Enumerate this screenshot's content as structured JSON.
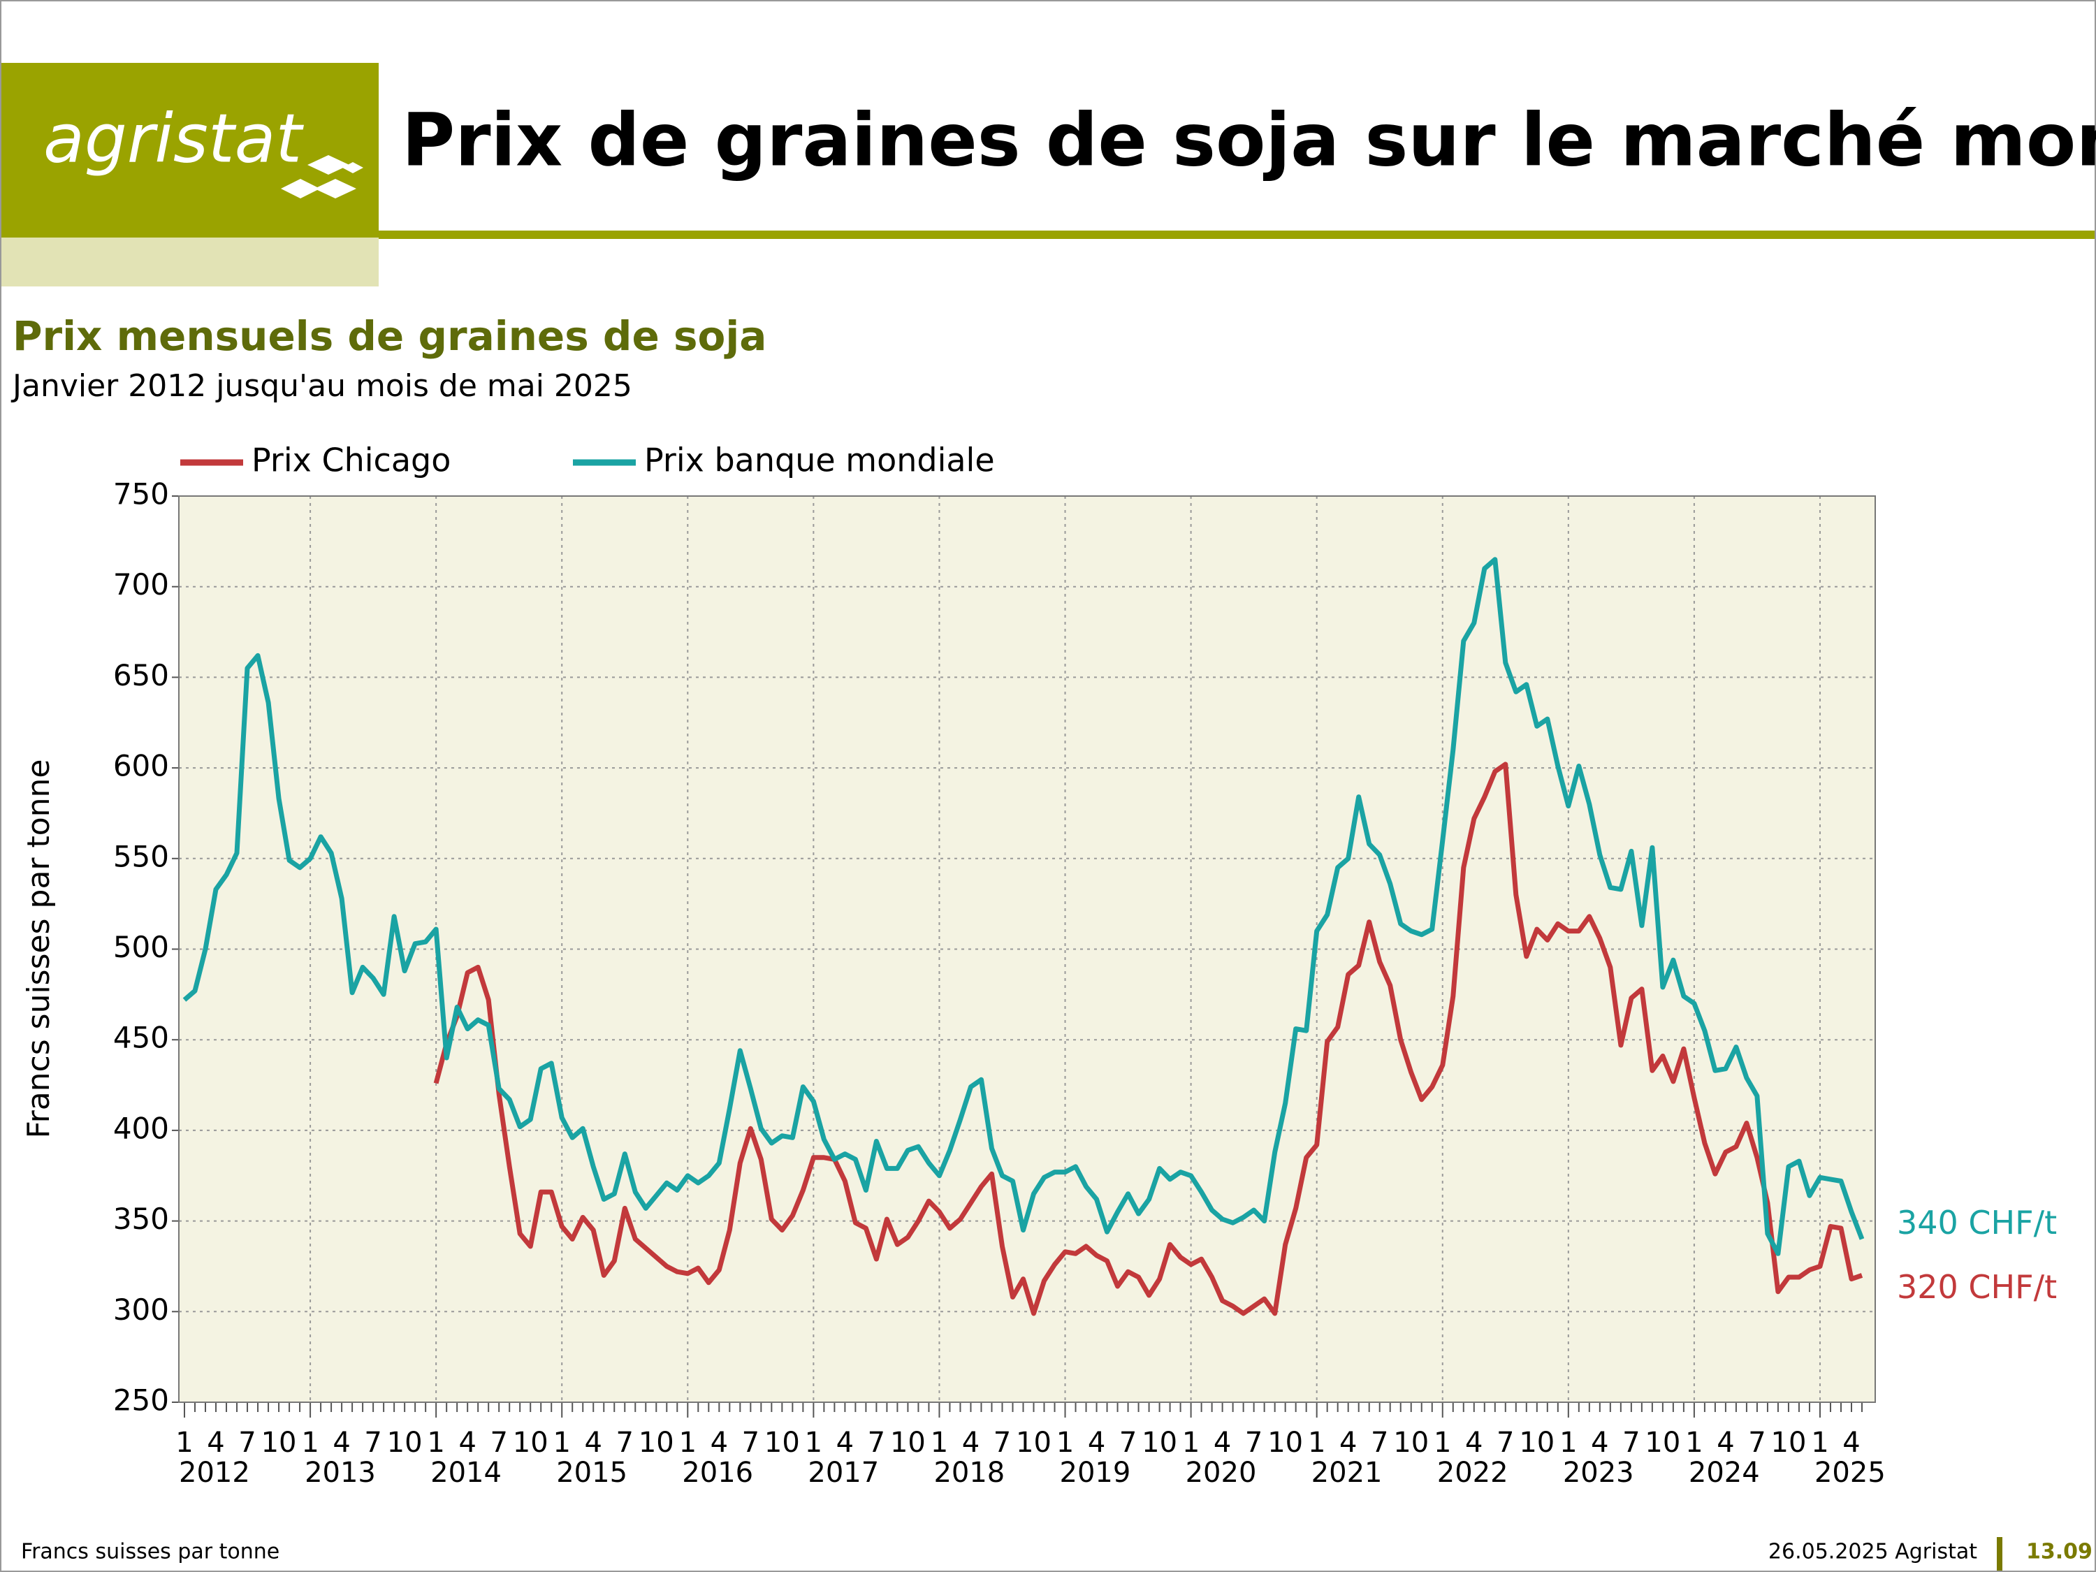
{
  "header": {
    "logo": "agristat",
    "title": "Prix de graines de soja sur le marché mondial"
  },
  "footer": {
    "note": "Francs suisses par tonne",
    "date": "26.05.2025 Agristat",
    "page": "13.09"
  },
  "chart_data": {
    "type": "line",
    "title": "Prix mensuels de graines de soja",
    "subtitle": "Janvier 2012 jusqu'au mois de mai 2025",
    "ylabel": "Francs suisses par tonne",
    "ylim": [
      250,
      750
    ],
    "yticks": [
      250,
      300,
      350,
      400,
      450,
      500,
      550,
      600,
      650,
      700,
      750
    ],
    "grid": true,
    "legend": "top-left",
    "years": [
      2012,
      2013,
      2014,
      2015,
      2016,
      2017,
      2018,
      2019,
      2020,
      2021,
      2022,
      2023,
      2024,
      2025
    ],
    "month_ticks": [
      1,
      4,
      7,
      10
    ],
    "x": [
      "2012-01",
      "2012-02",
      "2012-03",
      "2012-04",
      "2012-05",
      "2012-06",
      "2012-07",
      "2012-08",
      "2012-09",
      "2012-10",
      "2012-11",
      "2012-12",
      "2013-01",
      "2013-02",
      "2013-03",
      "2013-04",
      "2013-05",
      "2013-06",
      "2013-07",
      "2013-08",
      "2013-09",
      "2013-10",
      "2013-11",
      "2013-12",
      "2014-01",
      "2014-02",
      "2014-03",
      "2014-04",
      "2014-05",
      "2014-06",
      "2014-07",
      "2014-08",
      "2014-09",
      "2014-10",
      "2014-11",
      "2014-12",
      "2015-01",
      "2015-02",
      "2015-03",
      "2015-04",
      "2015-05",
      "2015-06",
      "2015-07",
      "2015-08",
      "2015-09",
      "2015-10",
      "2015-11",
      "2015-12",
      "2016-01",
      "2016-02",
      "2016-03",
      "2016-04",
      "2016-05",
      "2016-06",
      "2016-07",
      "2016-08",
      "2016-09",
      "2016-10",
      "2016-11",
      "2016-12",
      "2017-01",
      "2017-02",
      "2017-03",
      "2017-04",
      "2017-05",
      "2017-06",
      "2017-07",
      "2017-08",
      "2017-09",
      "2017-10",
      "2017-11",
      "2017-12",
      "2018-01",
      "2018-02",
      "2018-03",
      "2018-04",
      "2018-05",
      "2018-06",
      "2018-07",
      "2018-08",
      "2018-09",
      "2018-10",
      "2018-11",
      "2018-12",
      "2019-01",
      "2019-02",
      "2019-03",
      "2019-04",
      "2019-05",
      "2019-06",
      "2019-07",
      "2019-08",
      "2019-09",
      "2019-10",
      "2019-11",
      "2019-12",
      "2020-01",
      "2020-02",
      "2020-03",
      "2020-04",
      "2020-05",
      "2020-06",
      "2020-07",
      "2020-08",
      "2020-09",
      "2020-10",
      "2020-11",
      "2020-12",
      "2021-01",
      "2021-02",
      "2021-03",
      "2021-04",
      "2021-05",
      "2021-06",
      "2021-07",
      "2021-08",
      "2021-09",
      "2021-10",
      "2021-11",
      "2021-12",
      "2022-01",
      "2022-02",
      "2022-03",
      "2022-04",
      "2022-05",
      "2022-06",
      "2022-07",
      "2022-08",
      "2022-09",
      "2022-10",
      "2022-11",
      "2022-12",
      "2023-01",
      "2023-02",
      "2023-03",
      "2023-04",
      "2023-05",
      "2023-06",
      "2023-07",
      "2023-08",
      "2023-09",
      "2023-10",
      "2023-11",
      "2023-12",
      "2024-01",
      "2024-02",
      "2024-03",
      "2024-04",
      "2024-05",
      "2024-06",
      "2024-07",
      "2024-08",
      "2024-09",
      "2024-10",
      "2024-11",
      "2024-12",
      "2025-01",
      "2025-02",
      "2025-03",
      "2025-04",
      "2025-05"
    ],
    "series": [
      {
        "name": "Prix Chicago",
        "color": "#c2393b",
        "end_label": "320 CHF/t",
        "values": [
          null,
          null,
          null,
          null,
          null,
          null,
          null,
          null,
          null,
          null,
          null,
          null,
          null,
          null,
          null,
          null,
          null,
          null,
          null,
          null,
          null,
          null,
          null,
          null,
          426,
          448,
          463,
          487,
          490,
          472,
          420,
          380,
          343,
          336,
          366,
          366,
          347,
          340,
          352,
          345,
          320,
          328,
          357,
          340,
          335,
          330,
          325,
          322,
          321,
          324,
          316,
          323,
          345,
          382,
          401,
          384,
          351,
          345,
          353,
          367,
          385,
          385,
          384,
          372,
          349,
          346,
          329,
          351,
          337,
          341,
          350,
          361,
          355,
          346,
          351,
          360,
          369,
          376,
          336,
          308,
          318,
          299,
          317,
          326,
          333,
          332,
          336,
          331,
          328,
          314,
          322,
          319,
          309,
          318,
          337,
          330,
          326,
          329,
          319,
          306,
          303,
          299,
          303,
          307,
          299,
          337,
          357,
          385,
          392,
          449,
          457,
          486,
          491,
          515,
          493,
          480,
          450,
          432,
          417,
          424,
          436,
          474,
          545,
          572,
          584,
          598,
          602,
          530,
          496,
          511,
          505,
          514,
          510,
          510,
          518,
          506,
          490,
          447,
          473,
          478,
          433,
          441,
          427,
          445,
          418,
          393,
          376,
          388,
          391,
          404,
          385,
          360,
          311,
          319,
          319,
          323,
          325,
          347,
          346,
          318,
          320
        ]
      },
      {
        "name": "Prix banque mondiale",
        "color": "#1aa3a3",
        "end_label": "340 CHF/t",
        "values": [
          472,
          477,
          500,
          533,
          541,
          553,
          655,
          662,
          636,
          583,
          549,
          545,
          550,
          562,
          553,
          528,
          476,
          490,
          484,
          475,
          518,
          488,
          503,
          504,
          511,
          440,
          468,
          456,
          461,
          458,
          423,
          417,
          402,
          406,
          434,
          437,
          407,
          396,
          401,
          380,
          362,
          365,
          387,
          366,
          357,
          364,
          371,
          367,
          375,
          371,
          375,
          382,
          412,
          444,
          423,
          401,
          393,
          397,
          396,
          424,
          416,
          395,
          384,
          387,
          384,
          367,
          394,
          379,
          379,
          389,
          391,
          382,
          375,
          389,
          406,
          424,
          428,
          390,
          375,
          372,
          345,
          365,
          374,
          377,
          377,
          380,
          369,
          362,
          344,
          355,
          365,
          354,
          362,
          379,
          373,
          377,
          375,
          366,
          356,
          351,
          349,
          352,
          356,
          350,
          388,
          415,
          456,
          455,
          510,
          519,
          545,
          550,
          584,
          558,
          552,
          536,
          514,
          510,
          508,
          511,
          560,
          610,
          670,
          680,
          710,
          715,
          658,
          642,
          646,
          623,
          627,
          601,
          579,
          601,
          580,
          552,
          534,
          533,
          554,
          513,
          556,
          479,
          494,
          474,
          470,
          455,
          433,
          434,
          446,
          429,
          419,
          343,
          332,
          380,
          383,
          364,
          374,
          373,
          372,
          355,
          340
        ]
      }
    ]
  }
}
